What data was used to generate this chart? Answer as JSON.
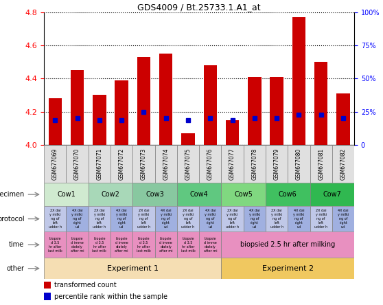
{
  "title": "GDS4009 / Bt.25733.1.A1_at",
  "samples": [
    "GSM677069",
    "GSM677070",
    "GSM677071",
    "GSM677072",
    "GSM677073",
    "GSM677074",
    "GSM677075",
    "GSM677076",
    "GSM677077",
    "GSM677078",
    "GSM677079",
    "GSM677080",
    "GSM677081",
    "GSM677082"
  ],
  "red_values": [
    4.28,
    4.45,
    4.3,
    4.39,
    4.53,
    4.55,
    4.07,
    4.48,
    4.15,
    4.41,
    4.41,
    4.77,
    4.5,
    4.31
  ],
  "blue_values": [
    4.15,
    4.16,
    4.15,
    4.15,
    4.2,
    4.16,
    4.15,
    4.16,
    4.15,
    4.16,
    4.16,
    4.18,
    4.18,
    4.16
  ],
  "ylim": [
    4.0,
    4.8
  ],
  "yticks_left": [
    4.0,
    4.2,
    4.4,
    4.6,
    4.8
  ],
  "yticks_right_labels": [
    "0",
    "25%",
    "50%",
    "75%",
    "100%"
  ],
  "bar_color_red": "#cc0000",
  "bar_color_blue": "#0000cc",
  "spec_colors": [
    "#d0ead0",
    "#a8d8b8",
    "#88c8a0",
    "#60c880",
    "#80d880",
    "#40c060",
    "#30b850"
  ],
  "spec_groups": [
    {
      "label": "Cow1",
      "start": 0,
      "end": 2
    },
    {
      "label": "Cow2",
      "start": 2,
      "end": 4
    },
    {
      "label": "Cow3",
      "start": 4,
      "end": 6
    },
    {
      "label": "Cow4",
      "start": 6,
      "end": 8
    },
    {
      "label": "Cow5",
      "start": 8,
      "end": 10
    },
    {
      "label": "Cow6",
      "start": 10,
      "end": 12
    },
    {
      "label": "Cow7",
      "start": 12,
      "end": 14
    }
  ],
  "protocol_color_even": "#c0c8e8",
  "protocol_color_odd": "#a0b0e0",
  "time_color": "#e890c0",
  "time_exp2_text": "biopsied 2.5 hr after milking",
  "other_groups": [
    {
      "label": "Experiment 1",
      "start": 0,
      "end": 8,
      "color": "#f5deb3"
    },
    {
      "label": "Experiment 2",
      "start": 8,
      "end": 14,
      "color": "#f0c860"
    }
  ],
  "row_labels": [
    "specimen",
    "protocol",
    "time",
    "other"
  ],
  "sample_bg_color": "#e0e0e0"
}
